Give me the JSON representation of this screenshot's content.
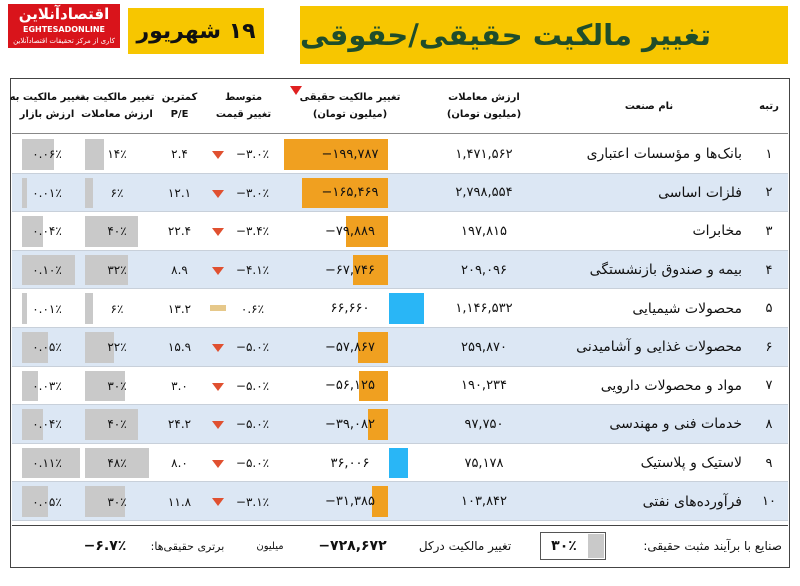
{
  "header": {
    "title": "تغییر مالکیت حقیقی/حقوقی",
    "date": "۱۹ شهریور",
    "logo": "اقتصادآنلاین",
    "logo_en": "EGHTESADONLINE",
    "logo_sub": "کاری از مرکز تحقیقات اقتصادآنلاین"
  },
  "table": {
    "columns": [
      {
        "lines": [
          "رتبه"
        ]
      },
      {
        "lines": [
          "نام صنعت"
        ]
      },
      {
        "lines": [
          "ارزش معاملات",
          "(میلیون تومان)"
        ]
      },
      {
        "lines": [
          "تغییر مالکیت حقیقی",
          "(میلیون تومان)"
        ]
      },
      {
        "lines": [
          "متوسط",
          "تغییر قیمت"
        ]
      },
      {
        "lines": [
          "کمترین",
          "P/E"
        ]
      },
      {
        "lines": [
          "تغییر مالکیت به",
          "ارزش معاملات"
        ]
      },
      {
        "lines": [
          "تغییر مالکیت به",
          "ارزش بازار"
        ]
      }
    ],
    "rows": [
      [
        "۱",
        "بانک‌ها و مؤسسات اعتباری",
        "۱,۴۷۱,۵۶۲",
        "−۱۹۹,۷۸۷",
        "−۳.۰٪",
        "۲.۴",
        "۱۴٪",
        "۰.۰۶٪"
      ],
      [
        "۲",
        "فلزات اساسی",
        "۲,۷۹۸,۵۵۴",
        "−۱۶۵,۴۶۹",
        "−۳.۰٪",
        "۱۲.۱",
        "۶٪",
        "۰.۰۱٪"
      ],
      [
        "۳",
        "مخابرات",
        "۱۹۷,۸۱۵",
        "−۷۹,۸۸۹",
        "−۳.۴٪",
        "۲۲.۴",
        "۴۰٪",
        "۰.۰۴٪"
      ],
      [
        "۴",
        "بیمه و صندوق بازنشستگی",
        "۲۰۹,۰۹۶",
        "−۶۷,۷۴۶",
        "−۴.۱٪",
        "۸.۹",
        "۳۲٪",
        "۰.۱۰٪"
      ],
      [
        "۵",
        "محصولات شیمیایی",
        "۱,۱۴۶,۵۳۲",
        "۶۶,۶۶۰",
        "۰.۶٪",
        "۱۳.۲",
        "۶٪",
        "۰.۰۱٪"
      ],
      [
        "۶",
        "محصولات غذایی و آشامیدنی",
        "۲۵۹,۸۷۰",
        "−۵۷,۸۶۷",
        "−۵.۰٪",
        "۱۵.۹",
        "۲۲٪",
        "۰.۰۵٪"
      ],
      [
        "۷",
        "مواد و محصولات دارویی",
        "۱۹۰,۲۳۴",
        "−۵۶,۱۲۵",
        "−۵.۰٪",
        "۳.۰",
        "۳۰٪",
        "۰.۰۳٪"
      ],
      [
        "۸",
        "خدمات فنی و مهندسی",
        "۹۷,۷۵۰",
        "−۳۹,۰۸۲",
        "−۵.۰٪",
        "۲۴.۲",
        "۴۰٪",
        "۰.۰۴٪"
      ],
      [
        "۹",
        "لاستیک و پلاستیک",
        "۷۵,۱۷۸",
        "۳۶,۰۰۶",
        "−۵.۰٪",
        "۸.۰",
        "۴۸٪",
        "۰.۱۱٪"
      ],
      [
        "۱۰",
        "فرآورده‌های نفتی",
        "۱۰۳,۸۴۲",
        "−۳۱,۳۸۵",
        "−۳.۱٪",
        "۱۱.۸",
        "۳۰٪",
        "۰.۰۵٪"
      ]
    ]
  },
  "footer": {
    "positive_label": "صنایع با برآیند مثبت حقیقی:",
    "positive_value": "۳۰٪",
    "total_label": "تغییر مالکیت درکل",
    "total_value": "−۷۲۸,۶۷۲",
    "total_unit": "میلیون",
    "advantage_label": "برتری حقیقی‌ها:",
    "advantage_value": "−۶.۷٪"
  }
}
